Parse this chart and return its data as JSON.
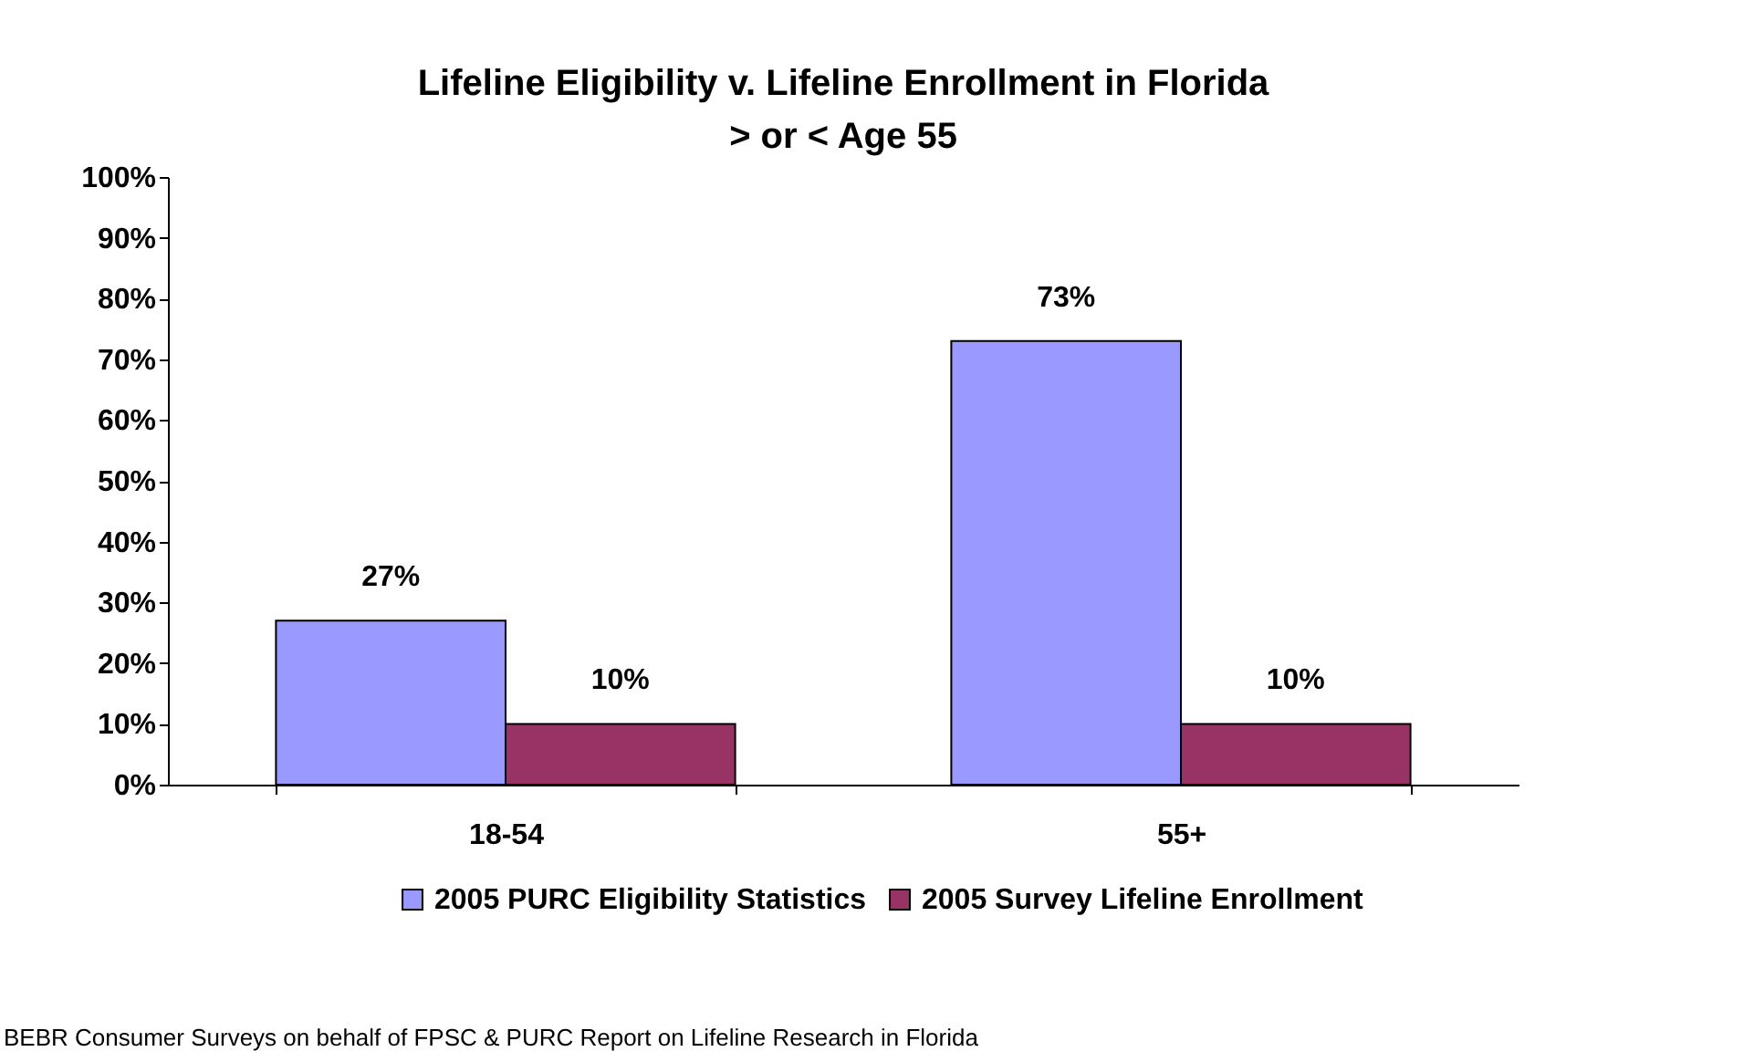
{
  "chart_data": {
    "type": "bar",
    "title": [
      "Lifeline Eligibility v. Lifeline Enrollment in Florida",
      "> or < Age 55"
    ],
    "categories": [
      "18-54",
      "55+"
    ],
    "series": [
      {
        "name": "2005 PURC Eligibility Statistics",
        "color": "#9999ff",
        "values": [
          27,
          73
        ],
        "value_labels": [
          "27%",
          "73%"
        ]
      },
      {
        "name": "2005 Survey Lifeline Enrollment",
        "color": "#993366",
        "values": [
          10,
          10
        ],
        "value_labels": [
          "10%",
          "10%"
        ]
      }
    ],
    "ylim": [
      0,
      100
    ],
    "yticks": [
      {
        "value": 0,
        "label": "0%"
      },
      {
        "value": 10,
        "label": "10%"
      },
      {
        "value": 20,
        "label": "20%"
      },
      {
        "value": 30,
        "label": "30%"
      },
      {
        "value": 40,
        "label": "40%"
      },
      {
        "value": 50,
        "label": "50%"
      },
      {
        "value": 60,
        "label": "60%"
      },
      {
        "value": 70,
        "label": "70%"
      },
      {
        "value": 80,
        "label": "80%"
      },
      {
        "value": 90,
        "label": "90%"
      },
      {
        "value": 100,
        "label": "100%"
      }
    ],
    "grid": false,
    "legend": "bottom",
    "annotations": [
      "BEBR Consumer Surveys on behalf of FPSC & PURC  Report on Lifeline Research in Florida"
    ]
  }
}
